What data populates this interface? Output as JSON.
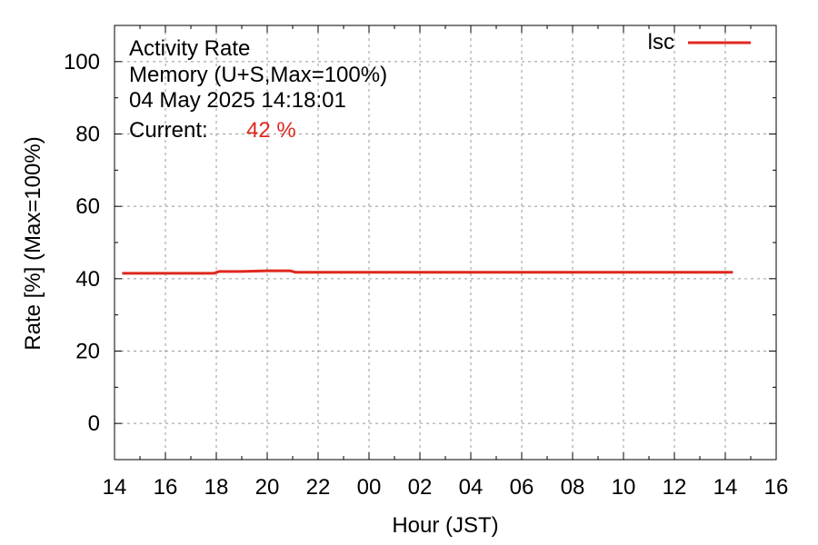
{
  "chart_data": {
    "type": "line",
    "header": {
      "title": "Activity Rate",
      "subtitle": "Memory (U+S,Max=100%)",
      "timestamp": "04 May 2025 14:18:01",
      "current_label": "Current:",
      "current_value": "42 %"
    },
    "xlabel": "Hour (JST)",
    "ylabel": "Rate [%]  (Max=100%)",
    "x_range": [
      14,
      40
    ],
    "y_range": [
      -10,
      110
    ],
    "x_ticks": [
      {
        "value": 14,
        "label": "14"
      },
      {
        "value": 16,
        "label": "16"
      },
      {
        "value": 18,
        "label": "18"
      },
      {
        "value": 20,
        "label": "20"
      },
      {
        "value": 22,
        "label": "22"
      },
      {
        "value": 24,
        "label": "00"
      },
      {
        "value": 26,
        "label": "02"
      },
      {
        "value": 28,
        "label": "04"
      },
      {
        "value": 30,
        "label": "06"
      },
      {
        "value": 32,
        "label": "08"
      },
      {
        "value": 34,
        "label": "10"
      },
      {
        "value": 36,
        "label": "12"
      },
      {
        "value": 38,
        "label": "14"
      },
      {
        "value": 40,
        "label": "16"
      }
    ],
    "y_ticks": [
      {
        "value": 0,
        "label": "0"
      },
      {
        "value": 20,
        "label": "20"
      },
      {
        "value": 40,
        "label": "40"
      },
      {
        "value": 60,
        "label": "60"
      },
      {
        "value": 80,
        "label": "80"
      },
      {
        "value": 100,
        "label": "100"
      }
    ],
    "grid": true,
    "legend_position": "top-right",
    "series": [
      {
        "name": "lsc",
        "color": "#e0281e",
        "x": [
          14.3,
          16,
          17.9,
          18.1,
          19,
          20,
          20.9,
          21.1,
          22,
          23,
          24,
          25,
          26,
          27,
          28,
          29,
          30,
          31,
          32,
          33,
          34,
          35,
          36,
          37,
          38,
          38.3
        ],
        "y": [
          41.5,
          41.5,
          41.5,
          42.0,
          42.0,
          42.2,
          42.2,
          41.8,
          41.8,
          41.8,
          41.8,
          41.8,
          41.8,
          41.8,
          41.8,
          41.8,
          41.8,
          41.8,
          41.8,
          41.8,
          41.8,
          41.8,
          41.8,
          41.8,
          41.8,
          41.8
        ]
      }
    ]
  },
  "colors": {
    "current_value": "#e0281e",
    "grid": "#999999",
    "frame": "#000000"
  }
}
